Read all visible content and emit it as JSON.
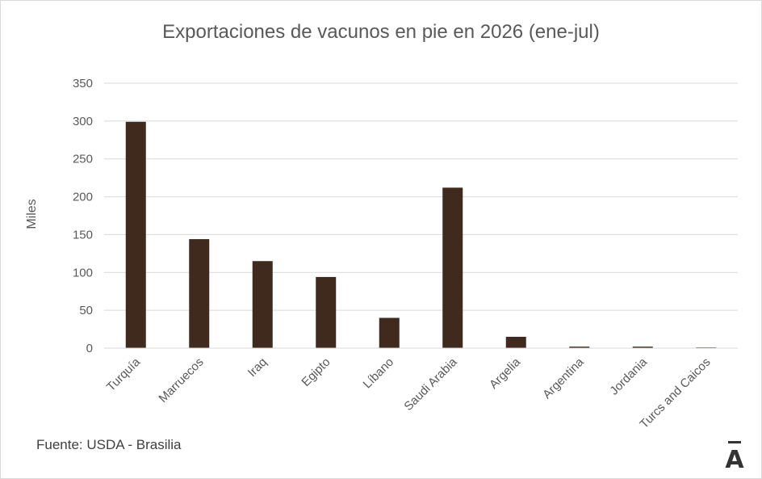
{
  "chart_data": {
    "type": "bar",
    "title": "Exportaciones de vacunos en pie en 2026 (ene-jul)",
    "ylabel": "Miles",
    "xlabel": "",
    "ylim": [
      0,
      350
    ],
    "yticks": [
      0,
      50,
      100,
      150,
      200,
      250,
      300,
      350
    ],
    "grid": true,
    "categories": [
      "Turquía",
      "Marruecos",
      "Iraq",
      "Egipto",
      "Líbano",
      "Saudi Arabia",
      "Argelia",
      "Argentina",
      "Jordania",
      "Turcs and Caicos"
    ],
    "values": [
      299,
      144,
      115,
      94,
      40,
      212,
      15,
      2,
      2,
      1
    ],
    "bar_color": "#3f2a1d",
    "grid_color": "#d9d9d9"
  },
  "source": "Fuente: USDA - Brasilia",
  "logo_text": "Ā"
}
